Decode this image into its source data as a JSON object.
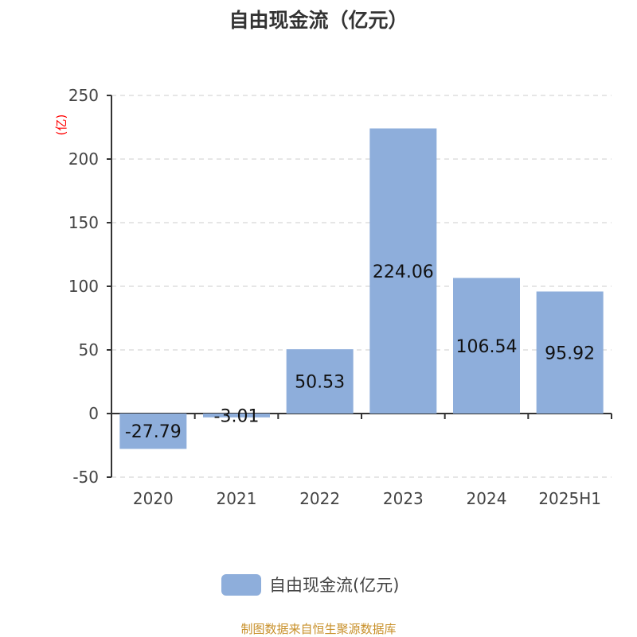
{
  "chart_data": {
    "type": "bar",
    "title": "自由现金流（亿元）",
    "ylabel": "(亿)",
    "categories": [
      "2020",
      "2021",
      "2022",
      "2023",
      "2024",
      "2025H1"
    ],
    "series": [
      {
        "name": "自由现金流(亿元)",
        "values": [
          -27.79,
          -3.01,
          50.53,
          224.06,
          106.54,
          95.92
        ],
        "color": "#8eaedb"
      }
    ],
    "data_labels": [
      "-27.79",
      "-3.01",
      "50.53",
      "224.06",
      "106.54",
      "95.92"
    ],
    "ylim": [
      -50,
      250
    ],
    "yticks": [
      -50,
      0,
      50,
      100,
      150,
      200,
      250
    ],
    "grid": true,
    "legend": "bottom",
    "colors": {
      "ylabel": "#ff0000",
      "source": "#c8902a"
    }
  },
  "source": "制图数据来自恒生聚源数据库"
}
